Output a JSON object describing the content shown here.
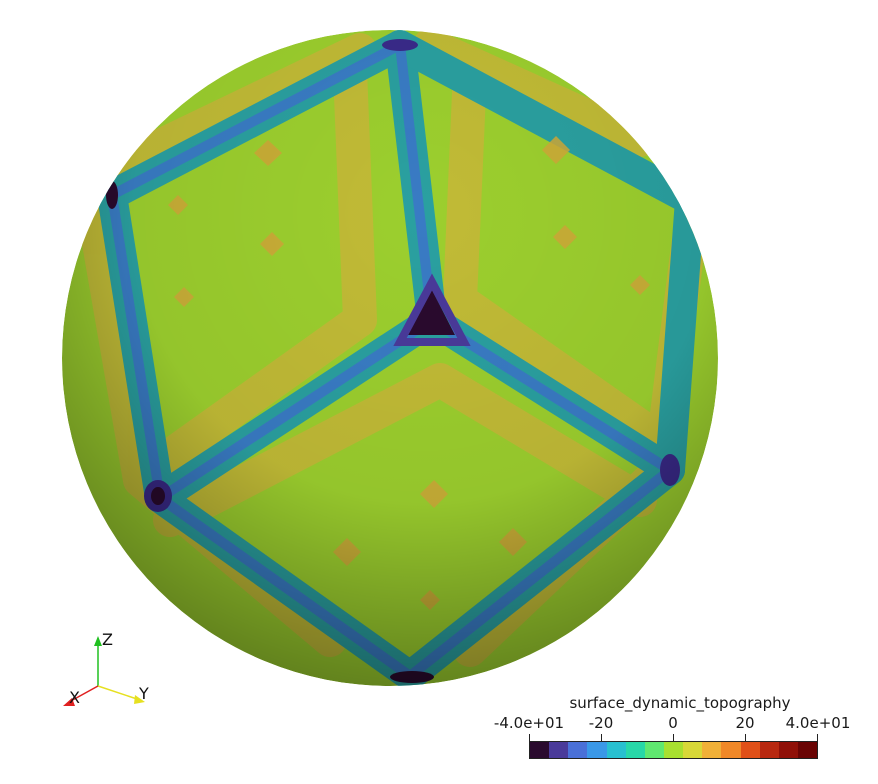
{
  "viewport": {
    "background": "#ffffff",
    "object": "sphere with icosahedral surface_dynamic_topography pattern"
  },
  "axes": {
    "x_label": "X",
    "y_label": "Y",
    "z_label": "Z",
    "x_color": "#e02020",
    "y_color": "#e6e020",
    "z_color": "#20c020"
  },
  "colorbar": {
    "title": "surface_dynamic_topography",
    "min_label": "-4.0e+01",
    "max_label": "4.0e+01",
    "ticks": [
      "-4.0e+01",
      "-20",
      "0",
      "20",
      "4.0e+01"
    ],
    "range": [
      -40,
      40
    ],
    "colors": [
      "#2a0a2e",
      "#4a3a9a",
      "#4a70d8",
      "#3a98e8",
      "#28c0d0",
      "#28d8a8",
      "#60e870",
      "#a8e030",
      "#d8d838",
      "#f0b038",
      "#f08828",
      "#e05018",
      "#b82810",
      "#901008",
      "#6a0404"
    ]
  }
}
